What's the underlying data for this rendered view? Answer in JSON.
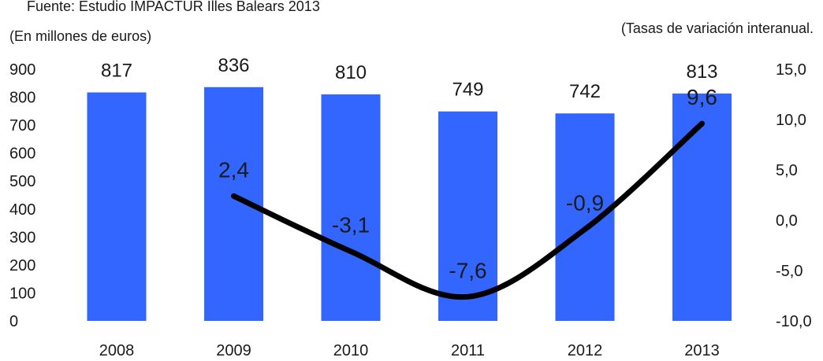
{
  "header": {
    "source_note": "Fuente: Estudio IMPACTUR Illes Balears 2013",
    "left_axis_note": "(En millones de euros)",
    "right_axis_note": "(Tasas de variación interanual."
  },
  "colors": {
    "bar": "#3366ff",
    "line": "#000000",
    "text": "#1a1a1a"
  },
  "chart_data": {
    "type": "bar",
    "title": "",
    "xlabel": "",
    "ylabel": "",
    "categories": [
      "2008",
      "2009",
      "2010",
      "2011",
      "2012",
      "2013"
    ],
    "ylim": [
      0,
      900
    ],
    "y_ticks": [
      "0",
      "100",
      "200",
      "300",
      "400",
      "500",
      "600",
      "700",
      "800",
      "900"
    ],
    "y2lim": [
      -10,
      15
    ],
    "y2_ticks": [
      "-10,0",
      "-5,0",
      "0,0",
      "5,0",
      "10,0",
      "15,0"
    ],
    "grid": false,
    "series": [
      {
        "type": "bar",
        "axis": "left",
        "values": [
          817,
          836,
          810,
          749,
          742,
          813
        ],
        "labels": [
          "817",
          "836",
          "810",
          "749",
          "742",
          "813"
        ]
      },
      {
        "type": "line",
        "axis": "right",
        "smooth": true,
        "values": [
          null,
          2.4,
          -3.1,
          -7.6,
          -0.9,
          9.6
        ],
        "labels": [
          "",
          "2,4",
          "-3,1",
          "-7,6",
          "-0,9",
          "9,6"
        ]
      }
    ]
  }
}
